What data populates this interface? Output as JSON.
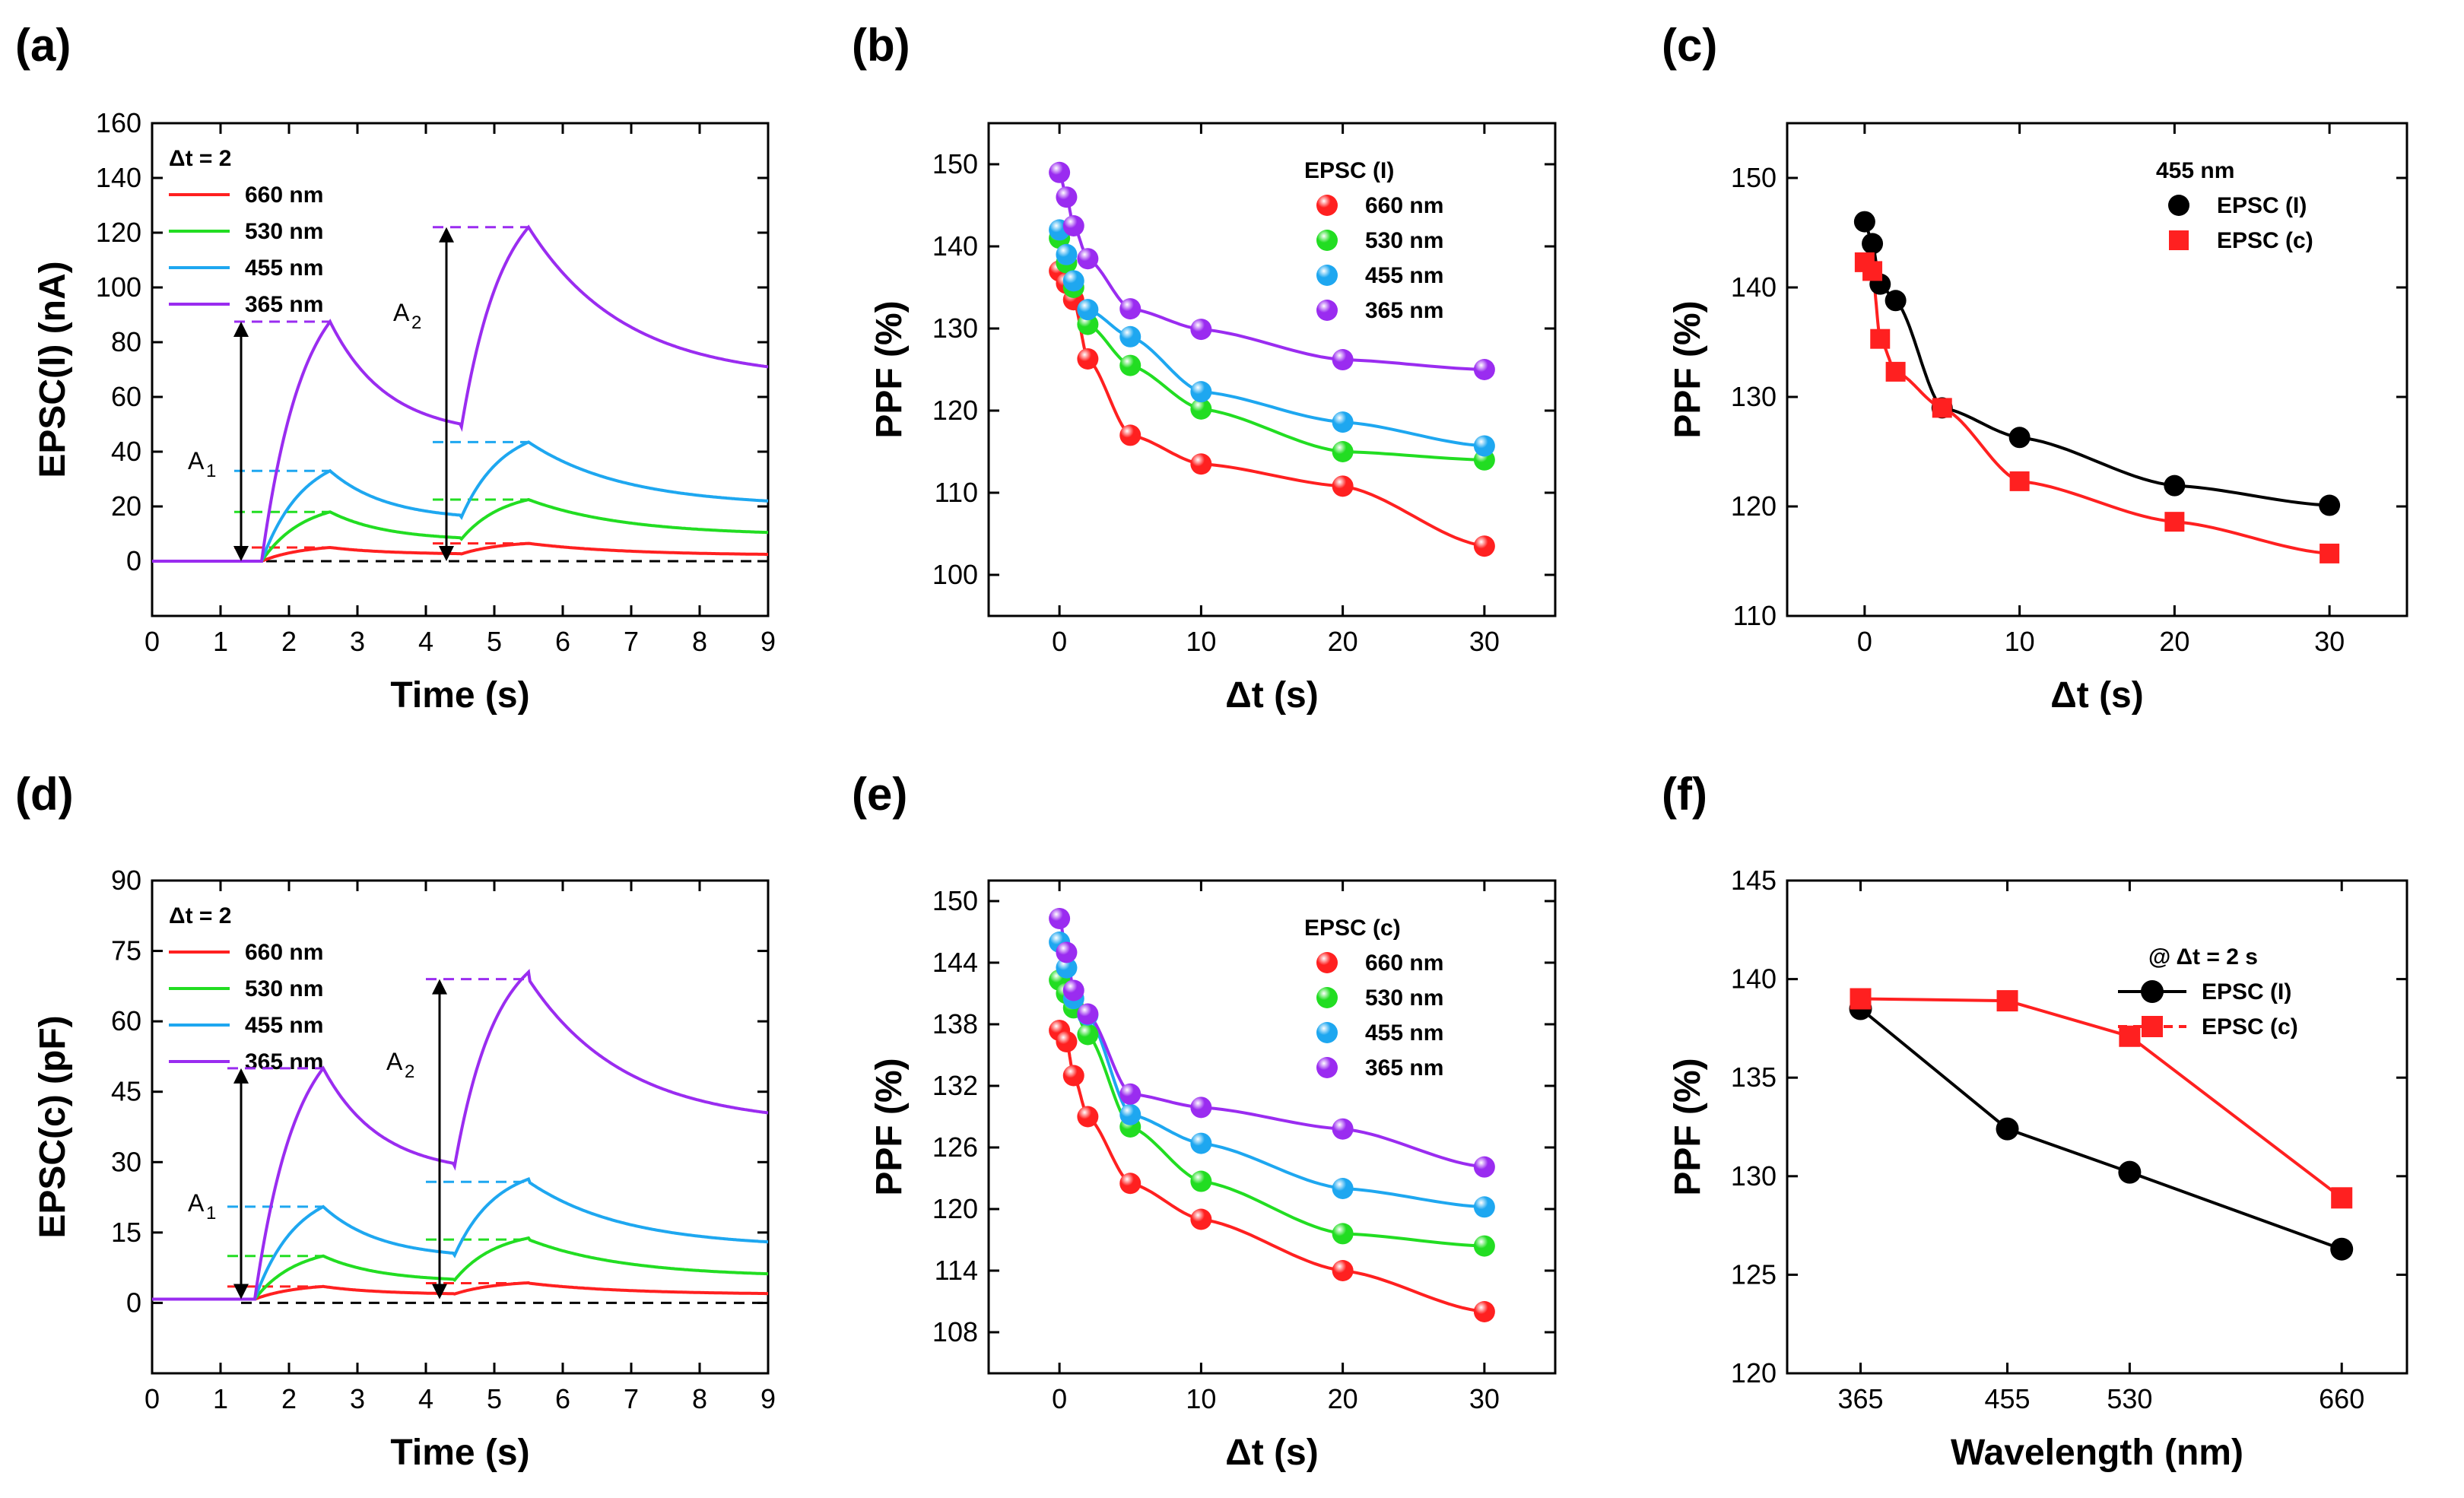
{
  "colors": {
    "660": "#ff2020",
    "530": "#22dd22",
    "455": "#1ea7f0",
    "365": "#9a2cf0",
    "black": "#000000",
    "red_sq": "#ff2020"
  },
  "chart_data": [
    {
      "id": "a",
      "label": "(a)",
      "type": "line",
      "xlabel": "Time (s)",
      "ylabel": "EPSC(I) (nA)",
      "xlim": [
        0,
        9
      ],
      "ylim": [
        -20,
        160
      ],
      "xticks": [
        "0",
        "1",
        "2",
        "3",
        "4",
        "5",
        "6",
        "7",
        "8",
        "9"
      ],
      "yticks": [
        "0",
        "20",
        "40",
        "60",
        "80",
        "100",
        "120",
        "140",
        "160"
      ],
      "legend_title": "Δt = 2",
      "annotations": [
        "A",
        "A"
      ],
      "annotation_subs": [
        "1",
        "2"
      ],
      "pulse": {
        "t1_start": 1.6,
        "t1_end": 2.6,
        "t2_start": 4.5,
        "t2_end": 5.5,
        "a1_arrow_x": 1.3,
        "a2_arrow_x": 4.3
      },
      "series": [
        {
          "name": "660 nm",
          "color_key": "660",
          "base": 0,
          "peak1": 5,
          "trough": 2.5,
          "peak2": 6.5,
          "end": 2.5
        },
        {
          "name": "530 nm",
          "color_key": "530",
          "base": 0,
          "peak1": 18,
          "trough": 7.5,
          "peak2": 22.5,
          "end": 10.5
        },
        {
          "name": "455 nm",
          "color_key": "455",
          "base": 0,
          "peak1": 33,
          "trough": 15,
          "peak2": 43.5,
          "end": 22
        },
        {
          "name": "365 nm",
          "color_key": "365",
          "base": 0,
          "peak1": 87.5,
          "trough": 46,
          "peak2": 122,
          "end": 71
        }
      ]
    },
    {
      "id": "b",
      "label": "(b)",
      "type": "scatter",
      "xlabel": "Δt (s)",
      "ylabel": "PPF (%)",
      "xlim": [
        -5,
        35
      ],
      "ylim": [
        95,
        155
      ],
      "xticks": [
        "0",
        "10",
        "20",
        "30"
      ],
      "ytick_values": [
        100,
        110,
        120,
        130,
        140,
        150
      ],
      "yticks": [
        "100",
        "110",
        "120",
        "130",
        "140",
        "150"
      ],
      "legend_title": "EPSC (I)",
      "x": [
        0,
        0.5,
        1,
        2,
        5,
        10,
        20,
        30
      ],
      "series": [
        {
          "name": "660 nm",
          "color_key": "660",
          "values": [
            137.0,
            135.5,
            133.5,
            126.3,
            117.0,
            113.5,
            110.8,
            103.5
          ]
        },
        {
          "name": "530 nm",
          "color_key": "530",
          "values": [
            141.0,
            138.0,
            135.0,
            130.5,
            125.5,
            120.2,
            115.0,
            114.0
          ]
        },
        {
          "name": "455 nm",
          "color_key": "455",
          "values": [
            142.0,
            139.0,
            135.8,
            132.3,
            129.0,
            122.3,
            118.6,
            115.7
          ]
        },
        {
          "name": "365 nm",
          "color_key": "365",
          "values": [
            149.0,
            146.0,
            142.5,
            138.5,
            132.4,
            129.9,
            126.2,
            125.0
          ]
        }
      ]
    },
    {
      "id": "c",
      "label": "(c)",
      "type": "scatter",
      "xlabel": "Δt (s)",
      "ylabel": "PPF (%)",
      "xlim": [
        -5,
        35
      ],
      "ylim": [
        110,
        155
      ],
      "xticks": [
        "0",
        "10",
        "20",
        "30"
      ],
      "yticks": [
        "110",
        "120",
        "130",
        "140",
        "150"
      ],
      "legend_title": "455 nm",
      "x": [
        0,
        0.5,
        1,
        2,
        5,
        10,
        20,
        30
      ],
      "series": [
        {
          "name": "EPSC (I)",
          "color_key": "black",
          "marker": "circle",
          "values": [
            146.0,
            144.0,
            140.3,
            138.8,
            129.0,
            126.3,
            121.9,
            120.1
          ]
        },
        {
          "name": "EPSC (c)",
          "color_key": "red_sq",
          "marker": "square",
          "values": [
            142.3,
            141.5,
            135.3,
            132.3,
            129.0,
            122.3,
            118.6,
            115.7
          ]
        }
      ]
    },
    {
      "id": "d",
      "label": "(d)",
      "type": "line",
      "xlabel": "Time (s)",
      "ylabel": "EPSC(c) (pF)",
      "xlim": [
        0,
        9
      ],
      "ylim": [
        -15,
        90
      ],
      "xticks": [
        "0",
        "1",
        "2",
        "3",
        "4",
        "5",
        "6",
        "7",
        "8",
        "9"
      ],
      "yticks": [
        "0",
        "15",
        "30",
        "45",
        "60",
        "75",
        "90"
      ],
      "legend_title": "Δt = 2",
      "annotations": [
        "A",
        "A"
      ],
      "annotation_subs": [
        "1",
        "2"
      ],
      "pulse": {
        "t1_start": 1.5,
        "t1_end": 2.5,
        "t2_start": 4.4,
        "t2_end": 5.5,
        "a1_arrow_x": 1.3,
        "a2_arrow_x": 4.2
      },
      "series": [
        {
          "name": "660 nm",
          "color_key": "660",
          "base": 0.8,
          "peak1": 3.5,
          "trough": 1.8,
          "peak2": 4.2,
          "end": 2
        },
        {
          "name": "530 nm",
          "color_key": "530",
          "base": 0.8,
          "peak1": 10,
          "trough": 4.5,
          "peak2": 13.5,
          "end": 6.2
        },
        {
          "name": "455 nm",
          "color_key": "455",
          "base": 0.8,
          "peak1": 20.5,
          "trough": 9.5,
          "peak2": 25.8,
          "end": 13
        },
        {
          "name": "365 nm",
          "color_key": "365",
          "base": 0.8,
          "peak1": 50,
          "trough": 27.5,
          "peak2": 69,
          "end": 40.5
        }
      ]
    },
    {
      "id": "e",
      "label": "(e)",
      "type": "scatter",
      "xlabel": "Δt (s)",
      "ylabel": "PPF (%)",
      "xlim": [
        -5,
        35
      ],
      "ylim": [
        104,
        152
      ],
      "xticks": [
        "0",
        "10",
        "20",
        "30"
      ],
      "yticks": [
        "108",
        "114",
        "120",
        "126",
        "132",
        "138",
        "144",
        "150"
      ],
      "legend_title": "EPSC (c)",
      "x": [
        0,
        0.5,
        1,
        2,
        5,
        10,
        20,
        30
      ],
      "series": [
        {
          "name": "660 nm",
          "color_key": "660",
          "values": [
            137.4,
            136.3,
            133.0,
            129.0,
            122.5,
            119.0,
            114.0,
            110.0
          ]
        },
        {
          "name": "530 nm",
          "color_key": "530",
          "values": [
            142.3,
            141.0,
            139.6,
            137.0,
            128.0,
            122.7,
            117.6,
            116.4
          ]
        },
        {
          "name": "455 nm",
          "color_key": "455",
          "values": [
            146.0,
            143.5,
            140.5,
            138.9,
            129.2,
            126.4,
            122.0,
            120.2
          ]
        },
        {
          "name": "365 nm",
          "color_key": "365",
          "values": [
            148.3,
            145.0,
            141.3,
            139.0,
            131.2,
            129.9,
            127.8,
            124.1
          ]
        }
      ]
    },
    {
      "id": "f",
      "label": "(f)",
      "type": "line",
      "xlabel": "Wavelength (nm)",
      "ylabel": "PPF (%)",
      "xlim": [
        320,
        700
      ],
      "ylim": [
        120,
        145
      ],
      "x": [
        365,
        455,
        530,
        660
      ],
      "xticks": [
        "365",
        "455",
        "530",
        "660"
      ],
      "yticks": [
        "120",
        "125",
        "130",
        "135",
        "140",
        "145"
      ],
      "legend_title": "@ Δt = 2 s",
      "series": [
        {
          "name": "EPSC (I)",
          "color_key": "black",
          "marker": "circle",
          "values": [
            138.5,
            132.4,
            130.2,
            126.3
          ]
        },
        {
          "name": "EPSC (c)",
          "color_key": "red_sq",
          "marker": "square",
          "values": [
            139.0,
            138.9,
            137.1,
            128.9
          ]
        }
      ]
    }
  ]
}
